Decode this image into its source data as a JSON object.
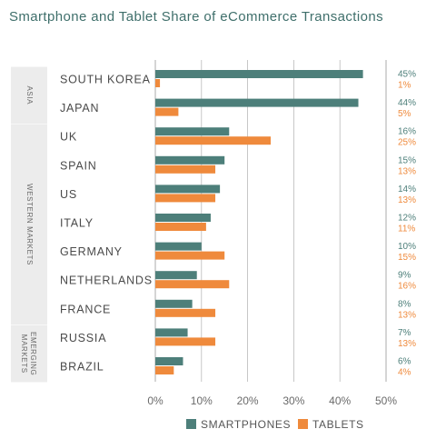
{
  "colors": {
    "smartphones": "#4d7f7a",
    "tablets": "#ef8a3c",
    "title": "#3f6f6b",
    "group_bg": "#ececec",
    "grid": "#b9b9b9"
  },
  "chart_data": {
    "type": "bar",
    "orientation": "horizontal",
    "title": "Smartphone and Tablet Share of eCommerce Transactions",
    "xlabel": "",
    "ylabel": "",
    "xlim": [
      0,
      50
    ],
    "x_ticks": [
      "0%",
      "10%",
      "20%",
      "30%",
      "40%",
      "50%"
    ],
    "grid": "vertical",
    "legend_position": "bottom",
    "groups": [
      {
        "name": "ASIA",
        "categories": [
          "SOUTH KOREA",
          "JAPAN"
        ]
      },
      {
        "name": "WESTERN MARKETS",
        "categories": [
          "UK",
          "SPAIN",
          "US",
          "ITALY",
          "GERMANY",
          "NETHERLANDS",
          "FRANCE"
        ]
      },
      {
        "name": "EMERGING MARKETS",
        "categories": [
          "RUSSIA",
          "BRAZIL"
        ]
      }
    ],
    "categories": [
      "SOUTH KOREA",
      "JAPAN",
      "UK",
      "SPAIN",
      "US",
      "ITALY",
      "GERMANY",
      "NETHERLANDS",
      "FRANCE",
      "RUSSIA",
      "BRAZIL"
    ],
    "series": [
      {
        "name": "SMARTPHONES",
        "values": [
          45,
          44,
          16,
          15,
          14,
          12,
          10,
          9,
          8,
          7,
          6
        ],
        "labels": [
          "45%",
          "44%",
          "16%",
          "15%",
          "14%",
          "12%",
          "10%",
          "9%",
          "8%",
          "7%",
          "6%"
        ]
      },
      {
        "name": "TABLETS",
        "values": [
          1,
          5,
          25,
          13,
          13,
          11,
          15,
          16,
          13,
          13,
          4
        ],
        "labels": [
          "1%",
          "5%",
          "25%",
          "13%",
          "13%",
          "11%",
          "15%",
          "16%",
          "13%",
          "13%",
          "4%"
        ]
      }
    ]
  }
}
